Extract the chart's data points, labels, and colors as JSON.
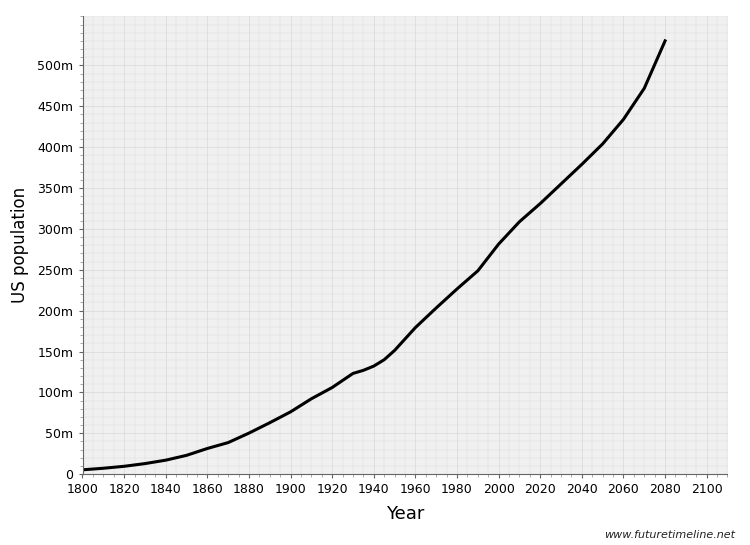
{
  "title": "",
  "xlabel": "Year",
  "ylabel": "US population",
  "background_color": "#ffffff",
  "plot_bg_color": "#f0f0f0",
  "line_color": "#000000",
  "line_width": 2.2,
  "xlim": [
    1800,
    2110
  ],
  "ylim": [
    0,
    560000000
  ],
  "xtick_labels": [
    "1800",
    "1820",
    "1840",
    "1860",
    "1880",
    "1900",
    "1920",
    "1940",
    "1960",
    "1980",
    "2000",
    "2020",
    "2040",
    "2060",
    "2080",
    "2100"
  ],
  "xtick_values": [
    1800,
    1820,
    1840,
    1860,
    1880,
    1900,
    1920,
    1940,
    1960,
    1980,
    2000,
    2020,
    2040,
    2060,
    2080,
    2100
  ],
  "ytick_labels": [
    "0",
    "50m",
    "100m",
    "150m",
    "200m",
    "250m",
    "300m",
    "350m",
    "400m",
    "450m",
    "500m"
  ],
  "ytick_values": [
    0,
    50000000,
    100000000,
    150000000,
    200000000,
    250000000,
    300000000,
    350000000,
    400000000,
    450000000,
    500000000
  ],
  "watermark": "www.futuretimeline.net",
  "grid_color": "#d8d8d8",
  "data": {
    "years": [
      1800,
      1810,
      1820,
      1830,
      1840,
      1850,
      1860,
      1870,
      1880,
      1890,
      1900,
      1910,
      1920,
      1930,
      1935,
      1940,
      1945,
      1950,
      1960,
      1970,
      1980,
      1990,
      2000,
      2010,
      2020,
      2030,
      2040,
      2050,
      2060,
      2070,
      2080
    ],
    "population": [
      5300000,
      7200000,
      9600000,
      12900000,
      17100000,
      23000000,
      31400000,
      38600000,
      50200000,
      62900000,
      76200000,
      92200000,
      106000000,
      123200000,
      127000000,
      132200000,
      140000000,
      151325000,
      179323000,
      203302000,
      226542000,
      248710000,
      281422000,
      308746000,
      331000000,
      355000000,
      379000000,
      404000000,
      434000000,
      472000000,
      530000000
    ]
  }
}
